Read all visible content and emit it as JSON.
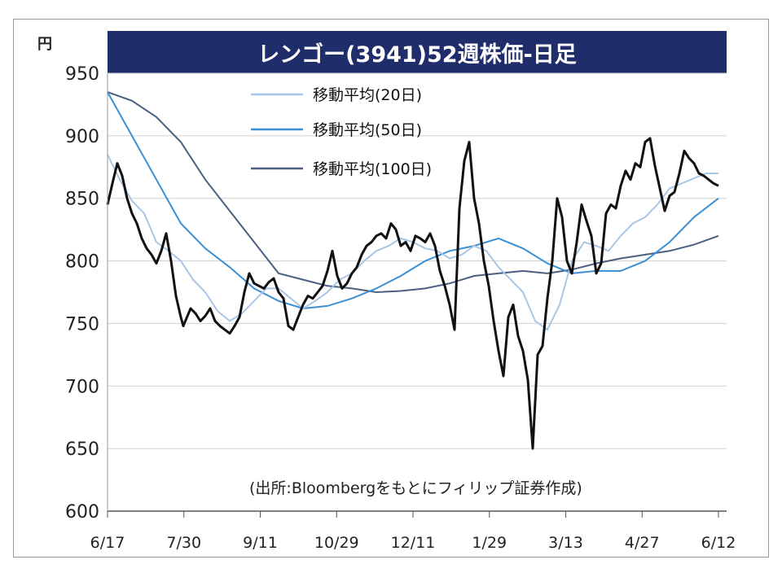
{
  "chart_data": {
    "type": "line",
    "title": "レンゴー(3941)52週株価-日足",
    "ylabel": "円",
    "ylim": [
      600,
      950
    ],
    "yticks": [
      "950",
      "900",
      "850",
      "800",
      "750",
      "700",
      "650",
      "600"
    ],
    "xticks": [
      "6/17",
      "7/30",
      "9/11",
      "10/29",
      "12/11",
      "1/29",
      "3/13",
      "4/27",
      "6/12"
    ],
    "grid": true,
    "legend_position": "top-center",
    "source": "(出所:Bloombergをもとにフィリップ証券作成)",
    "colors": {
      "title_bg": "#1f2d6b",
      "price": "#111111",
      "ma20": "#a9c6e6",
      "ma50": "#3b8fd4",
      "ma100": "#4a5f82"
    },
    "series": [
      {
        "name": "株価",
        "key": "price",
        "x": [
          0,
          2,
          4,
          6,
          8,
          10,
          12,
          14,
          16,
          18,
          20,
          22,
          24,
          26,
          28,
          30,
          31,
          34,
          36,
          38,
          40,
          42,
          44,
          46,
          48,
          50,
          52,
          54,
          56,
          58,
          60,
          62,
          64,
          66,
          68,
          70,
          72,
          74,
          76,
          78,
          80,
          82,
          84,
          86,
          88,
          90,
          92,
          94,
          96,
          98,
          100,
          102,
          104,
          106,
          108,
          110,
          112,
          114,
          116,
          118,
          120,
          122,
          124,
          126,
          128,
          130,
          132,
          134,
          136,
          138,
          140,
          142,
          144,
          146,
          148,
          150,
          152,
          154,
          156,
          158,
          160,
          162,
          164,
          166,
          168,
          170,
          172,
          174,
          176,
          178,
          180,
          182,
          184,
          186,
          188,
          190,
          192,
          194,
          196,
          198,
          200,
          202,
          204,
          206,
          208,
          210,
          212,
          214,
          216,
          218,
          220,
          222,
          224,
          226,
          228,
          230,
          232,
          234,
          236,
          238,
          240,
          242,
          244,
          246,
          248,
          250
        ],
        "values": [
          845,
          862,
          878,
          868,
          850,
          838,
          830,
          818,
          810,
          805,
          798,
          808,
          822,
          800,
          772,
          755,
          748,
          762,
          758,
          752,
          756,
          762,
          752,
          748,
          745,
          742,
          748,
          755,
          775,
          790,
          782,
          780,
          778,
          783,
          786,
          775,
          770,
          748,
          745,
          755,
          765,
          772,
          770,
          775,
          780,
          792,
          808,
          788,
          778,
          782,
          790,
          795,
          805,
          812,
          815,
          820,
          822,
          818,
          830,
          825,
          812,
          815,
          808,
          820,
          818,
          815,
          822,
          812,
          792,
          780,
          765,
          745,
          842,
          880,
          895,
          850,
          830,
          800,
          780,
          752,
          728,
          708,
          755,
          765,
          740,
          728,
          705,
          650,
          725,
          732,
          770,
          800,
          850,
          835,
          800,
          790,
          815,
          845,
          832,
          820,
          790,
          798,
          838,
          845,
          842,
          860,
          872,
          865,
          878,
          875,
          895,
          898,
          876,
          858,
          840,
          852,
          855,
          870,
          888,
          882,
          878,
          870,
          868,
          865,
          862,
          860
        ]
      },
      {
        "name": "移動平均(20日)",
        "key": "ma20",
        "x": [
          0,
          5,
          10,
          15,
          20,
          25,
          30,
          35,
          40,
          45,
          50,
          55,
          60,
          65,
          70,
          75,
          80,
          85,
          90,
          95,
          100,
          105,
          110,
          115,
          120,
          125,
          130,
          135,
          140,
          145,
          150,
          155,
          160,
          165,
          170,
          175,
          180,
          185,
          190,
          195,
          200,
          205,
          210,
          215,
          220,
          225,
          230,
          235,
          240,
          245,
          250
        ],
        "values": [
          885,
          865,
          848,
          838,
          815,
          808,
          800,
          785,
          775,
          760,
          752,
          758,
          768,
          778,
          778,
          770,
          762,
          768,
          775,
          785,
          790,
          800,
          808,
          812,
          818,
          815,
          810,
          808,
          802,
          805,
          812,
          808,
          795,
          785,
          775,
          752,
          745,
          765,
          800,
          815,
          812,
          808,
          820,
          830,
          835,
          845,
          858,
          862,
          866,
          870,
          870
        ]
      },
      {
        "name": "移動平均(50日)",
        "key": "ma50",
        "x": [
          0,
          10,
          20,
          30,
          40,
          50,
          60,
          70,
          80,
          90,
          100,
          110,
          120,
          130,
          140,
          150,
          160,
          170,
          180,
          190,
          200,
          210,
          220,
          230,
          240,
          250
        ],
        "values": [
          935,
          900,
          865,
          830,
          810,
          795,
          778,
          768,
          762,
          764,
          770,
          778,
          788,
          800,
          808,
          812,
          818,
          810,
          798,
          790,
          792,
          792,
          800,
          815,
          835,
          850
        ]
      },
      {
        "name": "移動平均(100日)",
        "key": "ma100",
        "x": [
          0,
          10,
          20,
          30,
          40,
          50,
          60,
          70,
          80,
          90,
          100,
          110,
          120,
          130,
          140,
          150,
          160,
          170,
          180,
          190,
          200,
          210,
          220,
          230,
          240,
          250
        ],
        "values": [
          935,
          928,
          915,
          895,
          865,
          840,
          815,
          790,
          785,
          780,
          778,
          775,
          776,
          778,
          782,
          788,
          790,
          792,
          790,
          793,
          798,
          802,
          805,
          808,
          813,
          820
        ]
      }
    ]
  }
}
